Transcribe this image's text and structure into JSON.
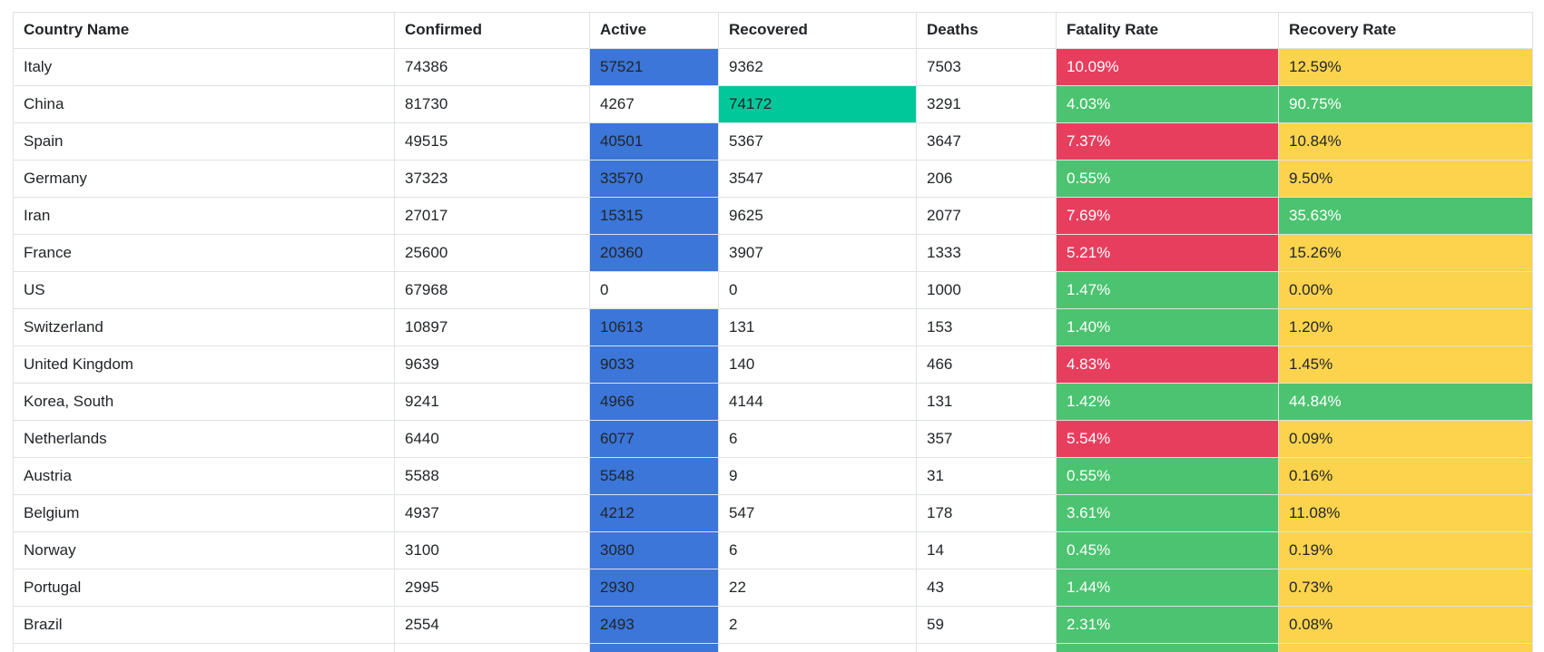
{
  "colors": {
    "active_highlight": "#3b76d8",
    "recovered_highlight": "#00c89b",
    "rate_high": "#e83e5e",
    "rate_good": "#4cc370",
    "rate_low": "#fbd34d",
    "border": "#dee2e6",
    "text": "#212529",
    "text_on_dark": "#ffffff",
    "page_bg": "#ffffff"
  },
  "table": {
    "columns": [
      {
        "key": "country",
        "label": "Country Name"
      },
      {
        "key": "confirmed",
        "label": "Confirmed"
      },
      {
        "key": "active",
        "label": "Active"
      },
      {
        "key": "recovered",
        "label": "Recovered"
      },
      {
        "key": "deaths",
        "label": "Deaths"
      },
      {
        "key": "fatality",
        "label": "Fatality Rate"
      },
      {
        "key": "recovery",
        "label": "Recovery Rate"
      }
    ],
    "rows": [
      {
        "country": "Italy",
        "confirmed": "74386",
        "active": "57521",
        "recovered": "9362",
        "deaths": "7503",
        "fatality": "10.09%",
        "recovery": "12.59%",
        "styles": {
          "active": "blue",
          "recovered": "none",
          "fatality": "red",
          "recovery": "yellow"
        }
      },
      {
        "country": "China",
        "confirmed": "81730",
        "active": "4267",
        "recovered": "74172",
        "deaths": "3291",
        "fatality": "4.03%",
        "recovery": "90.75%",
        "styles": {
          "active": "none",
          "recovered": "teal",
          "fatality": "green",
          "recovery": "green"
        }
      },
      {
        "country": "Spain",
        "confirmed": "49515",
        "active": "40501",
        "recovered": "5367",
        "deaths": "3647",
        "fatality": "7.37%",
        "recovery": "10.84%",
        "styles": {
          "active": "blue",
          "recovered": "none",
          "fatality": "red",
          "recovery": "yellow"
        }
      },
      {
        "country": "Germany",
        "confirmed": "37323",
        "active": "33570",
        "recovered": "3547",
        "deaths": "206",
        "fatality": "0.55%",
        "recovery": "9.50%",
        "styles": {
          "active": "blue",
          "recovered": "none",
          "fatality": "green",
          "recovery": "yellow"
        }
      },
      {
        "country": "Iran",
        "confirmed": "27017",
        "active": "15315",
        "recovered": "9625",
        "deaths": "2077",
        "fatality": "7.69%",
        "recovery": "35.63%",
        "styles": {
          "active": "blue",
          "recovered": "none",
          "fatality": "red",
          "recovery": "green"
        }
      },
      {
        "country": "France",
        "confirmed": "25600",
        "active": "20360",
        "recovered": "3907",
        "deaths": "1333",
        "fatality": "5.21%",
        "recovery": "15.26%",
        "styles": {
          "active": "blue",
          "recovered": "none",
          "fatality": "red",
          "recovery": "yellow"
        }
      },
      {
        "country": "US",
        "confirmed": "67968",
        "active": "0",
        "recovered": "0",
        "deaths": "1000",
        "fatality": "1.47%",
        "recovery": "0.00%",
        "styles": {
          "active": "none",
          "recovered": "none",
          "fatality": "green",
          "recovery": "yellow"
        }
      },
      {
        "country": "Switzerland",
        "confirmed": "10897",
        "active": "10613",
        "recovered": "131",
        "deaths": "153",
        "fatality": "1.40%",
        "recovery": "1.20%",
        "styles": {
          "active": "blue",
          "recovered": "none",
          "fatality": "green",
          "recovery": "yellow"
        }
      },
      {
        "country": "United Kingdom",
        "confirmed": "9639",
        "active": "9033",
        "recovered": "140",
        "deaths": "466",
        "fatality": "4.83%",
        "recovery": "1.45%",
        "styles": {
          "active": "blue",
          "recovered": "none",
          "fatality": "red",
          "recovery": "yellow"
        }
      },
      {
        "country": "Korea, South",
        "confirmed": "9241",
        "active": "4966",
        "recovered": "4144",
        "deaths": "131",
        "fatality": "1.42%",
        "recovery": "44.84%",
        "styles": {
          "active": "blue",
          "recovered": "none",
          "fatality": "green",
          "recovery": "green"
        }
      },
      {
        "country": "Netherlands",
        "confirmed": "6440",
        "active": "6077",
        "recovered": "6",
        "deaths": "357",
        "fatality": "5.54%",
        "recovery": "0.09%",
        "styles": {
          "active": "blue",
          "recovered": "none",
          "fatality": "red",
          "recovery": "yellow"
        }
      },
      {
        "country": "Austria",
        "confirmed": "5588",
        "active": "5548",
        "recovered": "9",
        "deaths": "31",
        "fatality": "0.55%",
        "recovery": "0.16%",
        "styles": {
          "active": "blue",
          "recovered": "none",
          "fatality": "green",
          "recovery": "yellow"
        }
      },
      {
        "country": "Belgium",
        "confirmed": "4937",
        "active": "4212",
        "recovered": "547",
        "deaths": "178",
        "fatality": "3.61%",
        "recovery": "11.08%",
        "styles": {
          "active": "blue",
          "recovered": "none",
          "fatality": "green",
          "recovery": "yellow"
        }
      },
      {
        "country": "Norway",
        "confirmed": "3100",
        "active": "3080",
        "recovered": "6",
        "deaths": "14",
        "fatality": "0.45%",
        "recovery": "0.19%",
        "styles": {
          "active": "blue",
          "recovered": "none",
          "fatality": "green",
          "recovery": "yellow"
        }
      },
      {
        "country": "Portugal",
        "confirmed": "2995",
        "active": "2930",
        "recovered": "22",
        "deaths": "43",
        "fatality": "1.44%",
        "recovery": "0.73%",
        "styles": {
          "active": "blue",
          "recovered": "none",
          "fatality": "green",
          "recovery": "yellow"
        }
      },
      {
        "country": "Brazil",
        "confirmed": "2554",
        "active": "2493",
        "recovered": "2",
        "deaths": "59",
        "fatality": "2.31%",
        "recovery": "0.08%",
        "styles": {
          "active": "blue",
          "recovered": "none",
          "fatality": "green",
          "recovery": "yellow"
        }
      }
    ],
    "partial_row": {
      "country": "",
      "confirmed": "",
      "active": "",
      "recovered": "",
      "deaths": "",
      "fatality": "",
      "recovery": "",
      "styles": {
        "active": "blue",
        "recovered": "none",
        "fatality": "green",
        "recovery": "yellow"
      }
    }
  }
}
